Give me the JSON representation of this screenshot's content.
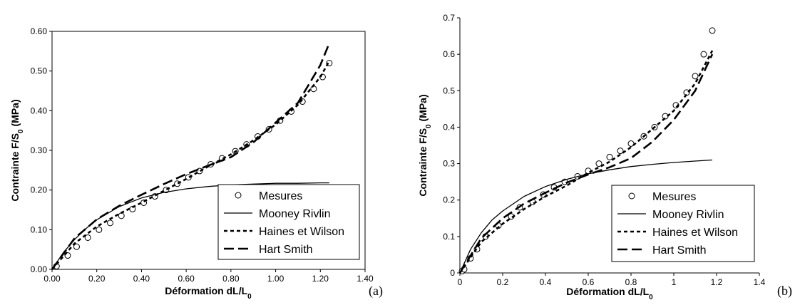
{
  "chart_data": [
    {
      "type": "scatter",
      "panel_label": "(a)",
      "title": "",
      "xlabel": {
        "main": "Déformation dL/L",
        "sub": "0"
      },
      "ylabel": {
        "main": "Contrainte F/S",
        "sub": "0",
        "tail": " (MPa)"
      },
      "xlim": [
        0,
        1.4
      ],
      "ylim": [
        0,
        0.6
      ],
      "xticks": [
        "0.00",
        "0.20",
        "0.40",
        "0.60",
        "0.80",
        "1.00",
        "1.20",
        "1.40"
      ],
      "yticks": [
        "0.00",
        "0.10",
        "0.20",
        "0.30",
        "0.40",
        "0.50",
        "0.60"
      ],
      "grid": false,
      "legend_position": "bottom-right",
      "series": [
        {
          "name": "Mesures",
          "style": "markers",
          "x": [
            0.02,
            0.07,
            0.11,
            0.16,
            0.21,
            0.26,
            0.31,
            0.36,
            0.41,
            0.46,
            0.51,
            0.56,
            0.61,
            0.66,
            0.71,
            0.76,
            0.82,
            0.87,
            0.92,
            0.97,
            1.02,
            1.07,
            1.12,
            1.17,
            1.21,
            1.24
          ],
          "y": [
            0.008,
            0.035,
            0.057,
            0.08,
            0.1,
            0.117,
            0.135,
            0.152,
            0.168,
            0.184,
            0.2,
            0.216,
            0.232,
            0.248,
            0.265,
            0.28,
            0.298,
            0.315,
            0.335,
            0.353,
            0.375,
            0.398,
            0.423,
            0.455,
            0.485,
            0.52
          ]
        },
        {
          "name": "Mooney Rivlin",
          "style": "solid",
          "x": [
            0,
            0.05,
            0.1,
            0.15,
            0.2,
            0.3,
            0.4,
            0.5,
            0.6,
            0.7,
            0.8,
            0.9,
            1.0,
            1.1,
            1.2,
            1.24
          ],
          "y": [
            0,
            0.042,
            0.075,
            0.102,
            0.125,
            0.158,
            0.18,
            0.194,
            0.203,
            0.209,
            0.213,
            0.215,
            0.217,
            0.217,
            0.218,
            0.218
          ]
        },
        {
          "name": "Haines et Wilson",
          "style": "dashed",
          "x": [
            0,
            0.1,
            0.2,
            0.3,
            0.4,
            0.5,
            0.6,
            0.7,
            0.8,
            0.9,
            1.0,
            1.1,
            1.2,
            1.24
          ],
          "y": [
            0,
            0.065,
            0.108,
            0.14,
            0.168,
            0.198,
            0.228,
            0.26,
            0.29,
            0.325,
            0.365,
            0.415,
            0.485,
            0.525
          ]
        },
        {
          "name": "Hart Smith",
          "style": "long-dashed",
          "x": [
            0,
            0.1,
            0.2,
            0.3,
            0.4,
            0.5,
            0.6,
            0.7,
            0.8,
            0.9,
            1.0,
            1.1,
            1.2,
            1.24
          ],
          "y": [
            0,
            0.078,
            0.126,
            0.16,
            0.188,
            0.215,
            0.24,
            0.262,
            0.283,
            0.32,
            0.37,
            0.42,
            0.515,
            0.57
          ]
        }
      ]
    },
    {
      "type": "scatter",
      "panel_label": "(b)",
      "title": "",
      "xlabel": {
        "main": "Déformation dL/L",
        "sub": "0"
      },
      "ylabel": {
        "main": "Contrainte F/S",
        "sub": "0",
        "tail": " (MPa)"
      },
      "xlim": [
        0,
        1.4
      ],
      "ylim": [
        0,
        0.7
      ],
      "xticks": [
        "0",
        "0.2",
        "0.4",
        "0.6",
        "0.8",
        "1",
        "1.2",
        "1.4"
      ],
      "yticks": [
        "0",
        "0.1",
        "0.2",
        "0.3",
        "0.4",
        "0.5",
        "0.6",
        "0.7"
      ],
      "grid": false,
      "legend_position": "bottom-right",
      "series": [
        {
          "name": "Mesures",
          "style": "markers",
          "x": [
            0.01,
            0.02,
            0.05,
            0.08,
            0.12,
            0.18,
            0.24,
            0.28,
            0.34,
            0.39,
            0.44,
            0.49,
            0.55,
            0.6,
            0.65,
            0.7,
            0.75,
            0.8,
            0.86,
            0.91,
            0.96,
            1.01,
            1.06,
            1.1,
            1.14,
            1.18
          ],
          "y": [
            0.005,
            0.01,
            0.04,
            0.065,
            0.1,
            0.13,
            0.155,
            0.18,
            0.195,
            0.215,
            0.235,
            0.25,
            0.265,
            0.28,
            0.3,
            0.318,
            0.335,
            0.355,
            0.375,
            0.4,
            0.43,
            0.46,
            0.495,
            0.54,
            0.6,
            0.665
          ]
        },
        {
          "name": "Mooney Rivlin",
          "style": "solid",
          "x": [
            0,
            0.05,
            0.1,
            0.15,
            0.2,
            0.3,
            0.4,
            0.5,
            0.6,
            0.7,
            0.8,
            0.9,
            1.0,
            1.1,
            1.18
          ],
          "y": [
            0,
            0.065,
            0.11,
            0.145,
            0.17,
            0.21,
            0.237,
            0.257,
            0.272,
            0.283,
            0.292,
            0.298,
            0.303,
            0.307,
            0.31
          ]
        },
        {
          "name": "Haines et Wilson",
          "style": "dashed",
          "x": [
            0,
            0.1,
            0.2,
            0.3,
            0.4,
            0.5,
            0.6,
            0.7,
            0.8,
            0.9,
            1.0,
            1.1,
            1.18
          ],
          "y": [
            0,
            0.085,
            0.135,
            0.175,
            0.21,
            0.24,
            0.275,
            0.305,
            0.345,
            0.395,
            0.445,
            0.52,
            0.61
          ]
        },
        {
          "name": "Hart Smith",
          "style": "long-dashed",
          "x": [
            0,
            0.1,
            0.2,
            0.3,
            0.4,
            0.5,
            0.6,
            0.7,
            0.8,
            0.9,
            1.0,
            1.1,
            1.18
          ],
          "y": [
            0,
            0.095,
            0.15,
            0.19,
            0.22,
            0.248,
            0.27,
            0.29,
            0.315,
            0.36,
            0.42,
            0.5,
            0.6
          ]
        }
      ]
    }
  ]
}
